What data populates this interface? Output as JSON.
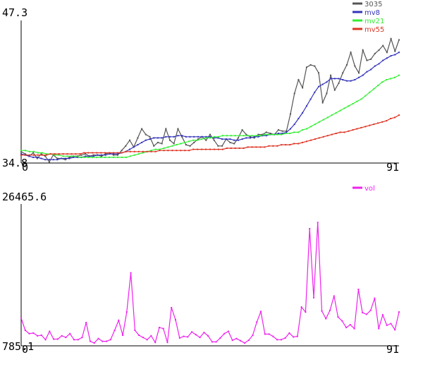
{
  "chart_data": [
    {
      "type": "line",
      "ylim": [
        34.8,
        47.3
      ],
      "xlim": [
        0,
        91
      ],
      "y_ticks": [
        "47.3",
        "34.8"
      ],
      "x_ticks": [
        "0",
        "91"
      ],
      "legend_position": "top-right",
      "series": [
        {
          "name": "3035",
          "color": "#555555",
          "values": [
            35.8,
            35.6,
            35.4,
            35.7,
            35.2,
            35.6,
            35.4,
            34.9,
            35.5,
            35.2,
            35.2,
            35.1,
            35.3,
            35.4,
            35.4,
            35.5,
            35.6,
            35.4,
            35.5,
            35.5,
            35.4,
            35.6,
            35.7,
            35.5,
            35.5,
            35.9,
            36.3,
            36.8,
            36.2,
            37.0,
            37.8,
            37.3,
            37.1,
            36.3,
            36.6,
            36.5,
            37.8,
            36.8,
            36.5,
            37.8,
            37.1,
            36.4,
            36.3,
            36.6,
            36.9,
            37.1,
            36.8,
            37.3,
            36.8,
            36.3,
            36.3,
            36.9,
            36.6,
            36.5,
            37.0,
            37.7,
            37.3,
            37.1,
            37.0,
            37.3,
            37.3,
            37.5,
            37.4,
            37.3,
            37.7,
            37.6,
            37.6,
            39.1,
            40.9,
            42.1,
            41.4,
            43.2,
            43.4,
            43.3,
            42.7,
            40.1,
            40.9,
            42.5,
            41.2,
            41.8,
            42.7,
            43.4,
            44.5,
            43.3,
            42.7,
            44.7,
            43.8,
            43.9,
            44.4,
            44.7,
            45.1,
            44.5,
            45.7,
            44.6,
            45.6
          ]
        },
        {
          "name": "mv8",
          "color": "#3333bb",
          "values": [
            35.6,
            35.5,
            35.4,
            35.3,
            35.3,
            35.2,
            35.1,
            35.1,
            35.1,
            35.1,
            35.2,
            35.2,
            35.2,
            35.3,
            35.3,
            35.3,
            35.4,
            35.4,
            35.4,
            35.5,
            35.5,
            35.5,
            35.6,
            35.6,
            35.6,
            35.7,
            35.8,
            36.0,
            36.2,
            36.4,
            36.6,
            36.8,
            36.9,
            37.0,
            37.0,
            37.0,
            37.1,
            37.1,
            37.1,
            37.2,
            37.2,
            37.1,
            37.1,
            37.1,
            37.1,
            37.1,
            37.1,
            37.1,
            37.0,
            37.0,
            36.9,
            36.9,
            36.9,
            36.8,
            36.8,
            36.9,
            37.0,
            37.0,
            37.1,
            37.1,
            37.2,
            37.2,
            37.3,
            37.3,
            37.4,
            37.4,
            37.5,
            37.8,
            38.2,
            38.7,
            39.2,
            39.8,
            40.4,
            41.0,
            41.5,
            41.7,
            41.9,
            42.2,
            42.2,
            42.2,
            42.1,
            42.0,
            42.0,
            42.1,
            42.3,
            42.5,
            42.8,
            43.0,
            43.3,
            43.5,
            43.8,
            44.0,
            44.2,
            44.3,
            44.5
          ]
        },
        {
          "name": "mv21",
          "color": "#33ee33",
          "values": [
            35.9,
            35.9,
            35.8,
            35.8,
            35.7,
            35.7,
            35.6,
            35.6,
            35.5,
            35.5,
            35.4,
            35.4,
            35.4,
            35.4,
            35.3,
            35.3,
            35.3,
            35.3,
            35.3,
            35.3,
            35.3,
            35.3,
            35.3,
            35.3,
            35.3,
            35.3,
            35.4,
            35.5,
            35.6,
            35.7,
            35.8,
            35.9,
            36.0,
            36.0,
            36.1,
            36.2,
            36.3,
            36.4,
            36.5,
            36.6,
            36.7,
            36.8,
            36.8,
            36.9,
            37.0,
            37.0,
            37.1,
            37.1,
            37.2,
            37.2,
            37.2,
            37.2,
            37.2,
            37.2,
            37.2,
            37.2,
            37.2,
            37.2,
            37.3,
            37.3,
            37.3,
            37.3,
            37.3,
            37.4,
            37.4,
            37.5,
            37.5,
            37.7,
            37.8,
            38.0,
            38.2,
            38.4,
            38.6,
            38.8,
            39.0,
            39.2,
            39.4,
            39.6,
            39.8,
            40.0,
            40.2,
            40.4,
            40.7,
            41.0,
            41.3,
            41.6,
            41.9,
            42.1,
            42.2,
            42.3,
            42.5
          ]
        },
        {
          "name": "mv55",
          "color": "#dd3322",
          "values": [
            35.5,
            35.5,
            35.5,
            35.5,
            35.5,
            35.5,
            35.5,
            35.6,
            35.6,
            35.6,
            35.6,
            35.6,
            35.6,
            35.6,
            35.6,
            35.7,
            35.7,
            35.7,
            35.7,
            35.7,
            35.7,
            35.7,
            35.7,
            35.7,
            35.7,
            35.8,
            35.8,
            35.8,
            35.8,
            35.8,
            35.8,
            35.8,
            35.8,
            35.9,
            35.9,
            35.9,
            35.9,
            35.9,
            35.9,
            35.9,
            35.9,
            36.0,
            36.0,
            36.0,
            36.0,
            36.0,
            36.0,
            36.0,
            36.0,
            36.1,
            36.1,
            36.1,
            36.1,
            36.1,
            36.2,
            36.2,
            36.2,
            36.2,
            36.2,
            36.3,
            36.3,
            36.3,
            36.4,
            36.4,
            36.4,
            36.5,
            36.5,
            36.6,
            36.7,
            36.8,
            36.9,
            37.0,
            37.1,
            37.2,
            37.3,
            37.4,
            37.5,
            37.5,
            37.6,
            37.7,
            37.8,
            37.9,
            38.0,
            38.1,
            38.2,
            38.3,
            38.4,
            38.5,
            38.7,
            38.8,
            39.0
          ]
        }
      ]
    },
    {
      "type": "line",
      "ylim": [
        785.1,
        26465.6
      ],
      "xlim": [
        0,
        91
      ],
      "y_ticks": [
        "26465.6",
        "785.1"
      ],
      "x_ticks": [
        "0",
        "91"
      ],
      "legend_position": "top-right",
      "series": [
        {
          "name": "vol",
          "color": "#ee22ee",
          "values": [
            5800,
            3600,
            3000,
            3100,
            2600,
            2700,
            1900,
            3400,
            2000,
            2000,
            2600,
            2300,
            3000,
            1900,
            1900,
            2300,
            5000,
            1600,
            1300,
            2100,
            1600,
            1600,
            1900,
            3600,
            5400,
            2700,
            6900,
            14000,
            3600,
            2700,
            2300,
            1900,
            2600,
            1400,
            4100,
            3900,
            1400,
            7700,
            5500,
            2200,
            2500,
            2400,
            3300,
            2800,
            2300,
            3200,
            2600,
            1500,
            1500,
            2200,
            3000,
            3400,
            1800,
            2100,
            1700,
            1300,
            1800,
            2700,
            5100,
            7000,
            2900,
            2900,
            2500,
            1900,
            1900,
            2200,
            3100,
            2400,
            2500,
            7800,
            6900,
            22000,
            9500,
            23100,
            7100,
            5700,
            7200,
            9800,
            6000,
            5300,
            4100,
            4600,
            3900,
            11000,
            6800,
            6500,
            7200,
            9400,
            3900,
            6400,
            4500,
            4800,
            3700,
            6900
          ]
        }
      ]
    }
  ]
}
